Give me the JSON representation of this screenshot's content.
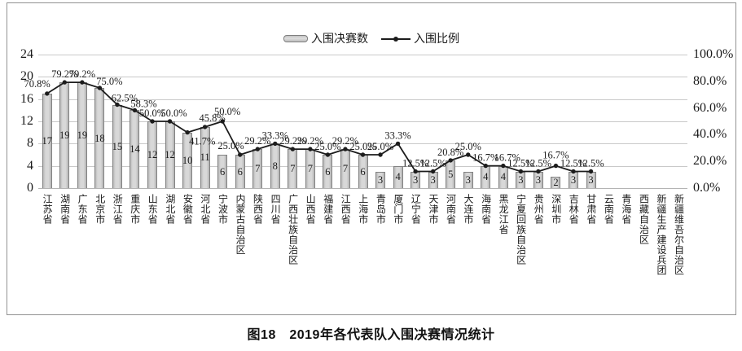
{
  "legend": {
    "bars_label": "入围决赛数",
    "line_label": "入围比例"
  },
  "caption": "图18　2019年各代表队入围决赛情况统计",
  "colors": {
    "bar_fill": "#cbcbcb",
    "bar_border": "#828282",
    "line": "#1c1c1c",
    "gridline": "#c9c9c9",
    "text": "#1a1a1a"
  },
  "chart_data": {
    "type": "bar+line combo",
    "title": "图18　2019年各代表队入围决赛情况统计",
    "categories": [
      "江苏省",
      "湖南省",
      "广东省",
      "北京市",
      "浙江省",
      "重庆市",
      "山东省",
      "湖北省",
      "安徽省",
      "河北省",
      "宁波市",
      "内蒙古自治区",
      "陕西省",
      "四川省",
      "广西壮族自治区",
      "山西省",
      "福建省",
      "江西省",
      "上海市",
      "青岛市",
      "厦门市",
      "辽宁省",
      "天津市",
      "河南省",
      "大连市",
      "海南省",
      "黑龙江省",
      "宁夏回族自治区",
      "贵州省",
      "深圳市",
      "吉林省",
      "甘肃省",
      "云南省",
      "青海省",
      "西藏自治区",
      "新疆生产建设兵团",
      "新疆维吾尔自治区"
    ],
    "series": [
      {
        "name": "入围决赛数",
        "type": "bar",
        "axis": "left",
        "values": [
          17,
          19,
          19,
          18,
          15,
          14,
          12,
          12,
          10,
          11,
          6,
          6,
          7,
          8,
          7,
          7,
          6,
          7,
          6,
          3,
          4,
          3,
          3,
          5,
          3,
          4,
          4,
          3,
          3,
          2,
          3,
          3,
          null,
          null,
          null,
          null,
          null
        ]
      },
      {
        "name": "入围比例",
        "type": "line",
        "axis": "right",
        "values": [
          70.8,
          79.2,
          79.2,
          75.0,
          62.5,
          58.3,
          50.0,
          50.0,
          41.7,
          45.8,
          50.0,
          25.0,
          29.2,
          33.3,
          29.2,
          29.2,
          25.0,
          29.2,
          25.0,
          25.0,
          33.3,
          12.5,
          12.5,
          20.8,
          25.0,
          16.7,
          16.7,
          12.5,
          12.5,
          16.7,
          12.5,
          12.5,
          null,
          null,
          null,
          null,
          null
        ],
        "labels": [
          "70.8%",
          "79.2%",
          "79.2%",
          "75.0%",
          "62.5%",
          "58.3%",
          "50.0%",
          "50.0%",
          "41.7%",
          "45.8%",
          "50.0%",
          "25.0%",
          "29.2%",
          "33.3%",
          "29.2%",
          "29.2%",
          "25.0%",
          "29.2%",
          "25.0%",
          "25.0%",
          "33.3%",
          "12.5%",
          "12.5%",
          "20.8%",
          "25.0%",
          "16.7%",
          "16.7%",
          "12.5%",
          "12.5%",
          "16.7%",
          "12.5%",
          "12.5%",
          null,
          null,
          null,
          null,
          null
        ]
      }
    ],
    "left_axis": {
      "min": 0,
      "max": 24,
      "step": 4,
      "ticks": [
        "0",
        "4",
        "8",
        "12",
        "16",
        "20",
        "24"
      ]
    },
    "right_axis": {
      "min": 0,
      "max": 100,
      "step": 20,
      "ticks": [
        "0.0%",
        "20.0%",
        "40.0%",
        "60.0%",
        "80.0%",
        "100.0%"
      ]
    },
    "grid": true,
    "legend_position": "top"
  }
}
